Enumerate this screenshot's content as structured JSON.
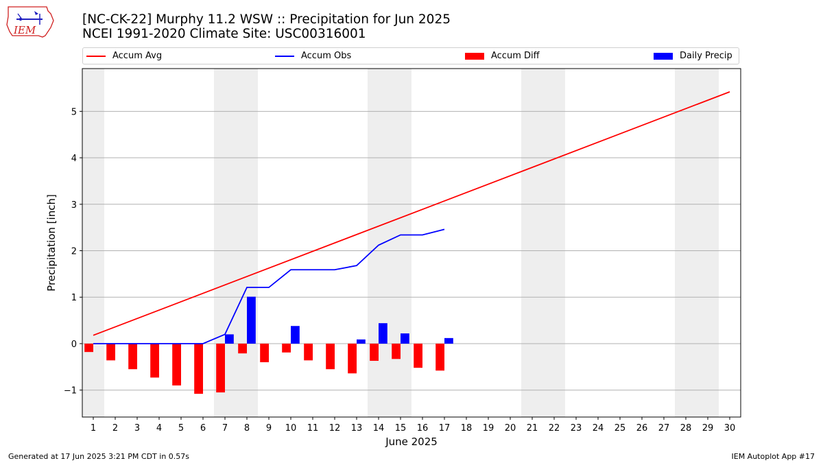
{
  "header": {
    "logo_text": "IEM",
    "title_line1": "[NC-CK-22] Murphy 11.2 WSW :: Precipitation for Jun 2025",
    "title_line2": "NCEI 1991-2020 Climate Site: USC00316001"
  },
  "legend": {
    "accum_avg": "Accum Avg",
    "accum_obs": "Accum Obs",
    "accum_diff": "Accum Diff",
    "daily_precip": "Daily Precip"
  },
  "colors": {
    "avg": "#ff0000",
    "obs": "#0000ff",
    "diff": "#ff0000",
    "daily": "#0000ff",
    "weekend": "#eeeeee",
    "grid": "#b0b0b0"
  },
  "footer": {
    "generated": "Generated at 17 Jun 2025 3:21 PM CDT in 0.57s",
    "app": "IEM Autoplot App #17"
  },
  "chart_data": {
    "type": "bar",
    "xlabel": "June 2025",
    "ylabel": "Precipitation [inch]",
    "ylim": [
      -1.58,
      5.92
    ],
    "yticks": [
      -1,
      0,
      1,
      2,
      3,
      4,
      5
    ],
    "yticklabels": [
      "−1",
      "0",
      "1",
      "2",
      "3",
      "4",
      "5"
    ],
    "xlim": [
      0.5,
      30.5
    ],
    "days": [
      1,
      2,
      3,
      4,
      5,
      6,
      7,
      8,
      9,
      10,
      11,
      12,
      13,
      14,
      15,
      16,
      17,
      18,
      19,
      20,
      21,
      22,
      23,
      24,
      25,
      26,
      27,
      28,
      29,
      30
    ],
    "weekend_days": [
      1,
      7,
      8,
      14,
      15,
      21,
      22,
      28,
      29
    ],
    "grid": "horizontal",
    "legend_position": "top",
    "series": [
      {
        "name": "Accum Avg",
        "type": "line",
        "x": [
          1,
          30
        ],
        "values": [
          0.18,
          5.42
        ]
      },
      {
        "name": "Accum Obs",
        "type": "line",
        "x": [
          1,
          2,
          3,
          4,
          5,
          6,
          7,
          8,
          9,
          10,
          11,
          12,
          13,
          14,
          15,
          16,
          17
        ],
        "values": [
          0,
          0,
          0,
          0,
          0,
          0,
          0.2,
          1.21,
          1.21,
          1.59,
          1.59,
          1.59,
          1.68,
          2.12,
          2.34,
          2.34,
          2.46
        ]
      },
      {
        "name": "Accum Diff",
        "type": "bar",
        "x": [
          1,
          2,
          3,
          4,
          5,
          6,
          7,
          8,
          9,
          10,
          11,
          12,
          13,
          14,
          15,
          16,
          17
        ],
        "values": [
          -0.18,
          -0.36,
          -0.55,
          -0.73,
          -0.9,
          -1.08,
          -1.05,
          -0.21,
          -0.4,
          -0.19,
          -0.36,
          -0.55,
          -0.64,
          -0.37,
          -0.33,
          -0.52,
          -0.58
        ]
      },
      {
        "name": "Daily Precip",
        "type": "bar",
        "x": [
          7,
          8,
          10,
          13,
          14,
          15,
          17
        ],
        "values": [
          0.2,
          1.01,
          0.38,
          0.09,
          0.44,
          0.22,
          0.12
        ]
      }
    ]
  }
}
